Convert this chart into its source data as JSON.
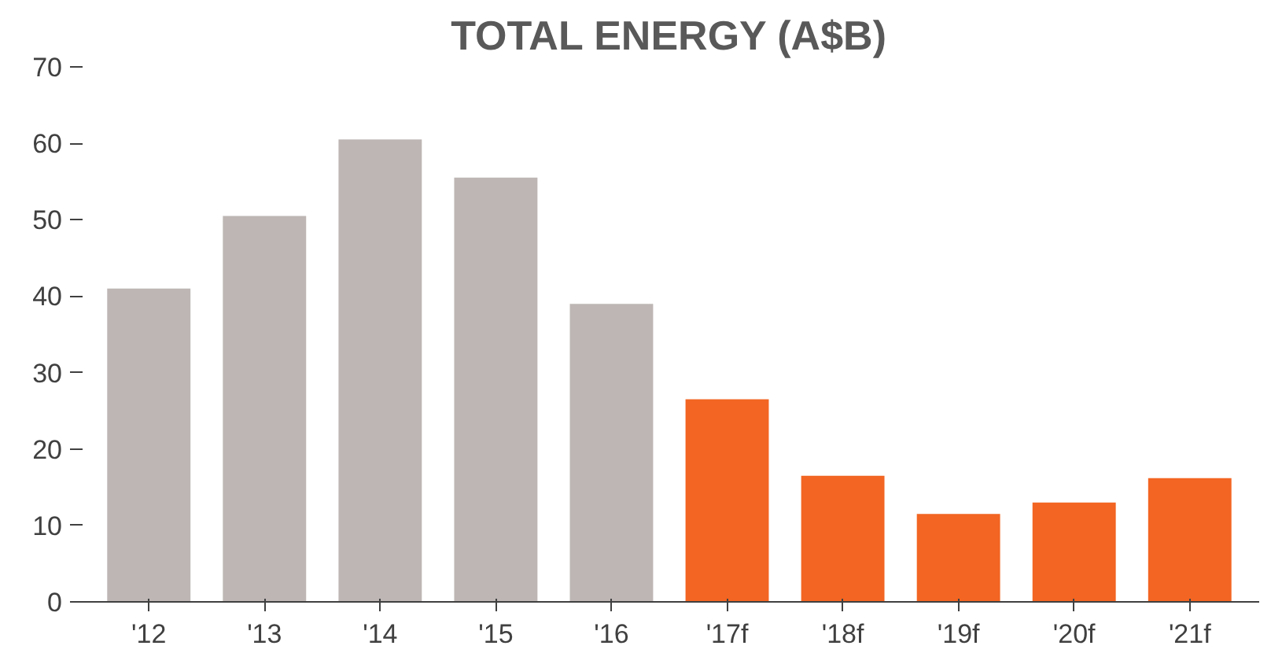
{
  "chart_data": {
    "type": "bar",
    "title": "TOTAL ENERGY (A$B)",
    "categories": [
      "'12",
      "'13",
      "'14",
      "'15",
      "'16",
      "'17f",
      "'18f",
      "'19f",
      "'20f",
      "'21f"
    ],
    "values": [
      41,
      50.5,
      60.5,
      55.5,
      39,
      26.5,
      16.5,
      11.5,
      13,
      16.2
    ],
    "colors": [
      "#bdb6b4",
      "#bdb6b4",
      "#bdb6b4",
      "#bdb6b4",
      "#bdb6b4",
      "#f26522",
      "#f26522",
      "#f26522",
      "#f26522",
      "#f26522"
    ],
    "ylim": [
      0,
      70
    ],
    "yticks": [
      0,
      10,
      20,
      30,
      40,
      50,
      60,
      70
    ],
    "grid": false
  }
}
